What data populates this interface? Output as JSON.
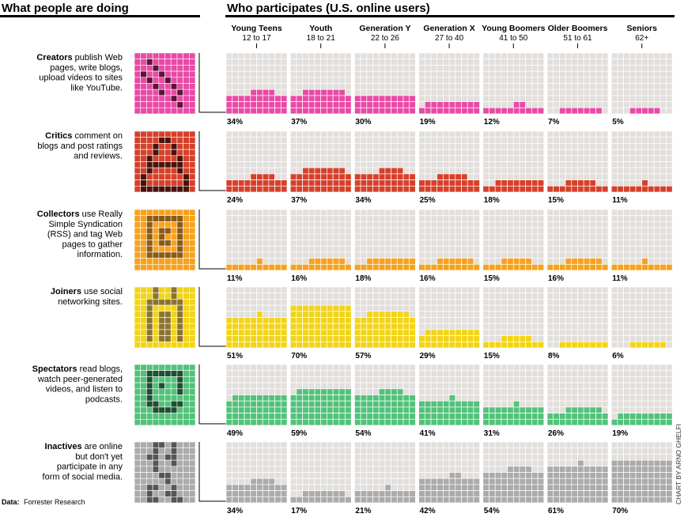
{
  "header": {
    "left_title": "What people are doing",
    "right_title": "Who participates (U.S. online users)"
  },
  "footer": {
    "source": "Forrester Research",
    "source_label": "Data:",
    "credit": "CHART BY ARNO GHELFI"
  },
  "colors": {
    "empty_cell": "#e2dfdc",
    "grid_line": "#ffffff",
    "header_rule": "#000000"
  },
  "chart_data": {
    "type": "heatmap",
    "title": "Who participates (U.S. online users)",
    "groups": [
      {
        "name": "Young Teens",
        "ages": "12 to 17"
      },
      {
        "name": "Youth",
        "ages": "18 to 21"
      },
      {
        "name": "Generation Y",
        "ages": "22 to 26"
      },
      {
        "name": "Generation X",
        "ages": "27 to 40"
      },
      {
        "name": "Young Boomers",
        "ages": "41 to 50"
      },
      {
        "name": "Older Boomers",
        "ages": "51 to 61"
      },
      {
        "name": "Seniors",
        "ages": "62+"
      }
    ],
    "series": [
      {
        "name": "Creators",
        "description": "publish Web pages, write blogs, upload videos to sites like YouTube.",
        "values": [
          34,
          37,
          30,
          19,
          12,
          7,
          5
        ],
        "labels": [
          "34%",
          "37%",
          "30%",
          "19%",
          "12%",
          "7%",
          "5%"
        ],
        "color": "#e84aa6",
        "dark": "#5c1436"
      },
      {
        "name": "Critics",
        "description": "comment on blogs and post ratings and reviews.",
        "values": [
          24,
          37,
          34,
          25,
          18,
          15,
          11
        ],
        "labels": [
          "24%",
          "37%",
          "34%",
          "25%",
          "18%",
          "15%",
          "11%"
        ],
        "color": "#d6402a",
        "dark": "#4a120a"
      },
      {
        "name": "Collectors",
        "description": "use Really Simple Syndication (RSS) and tag Web pages to gather information.",
        "values": [
          11,
          16,
          18,
          16,
          15,
          16,
          11
        ],
        "labels": [
          "11%",
          "16%",
          "18%",
          "16%",
          "15%",
          "16%",
          "11%"
        ],
        "color": "#f5a21f",
        "dark": "#8a5a18"
      },
      {
        "name": "Joiners",
        "description": "use social networking sites.",
        "values": [
          51,
          70,
          57,
          29,
          15,
          8,
          6
        ],
        "labels": [
          "51%",
          "70%",
          "57%",
          "29%",
          "15%",
          "8%",
          "6%"
        ],
        "color": "#f2d417",
        "dark": "#8a7430"
      },
      {
        "name": "Spectators",
        "description": "read blogs, watch peer-generated videos, and listen to podcasts.",
        "values": [
          49,
          59,
          54,
          41,
          31,
          26,
          19
        ],
        "labels": [
          "49%",
          "59%",
          "54%",
          "41%",
          "31%",
          "26%",
          "19%"
        ],
        "color": "#52c27a",
        "dark": "#1f4e30"
      },
      {
        "name": "Inactives",
        "description": "are online but don't yet participate in any form of social media.",
        "values": [
          34,
          17,
          21,
          42,
          54,
          61,
          70
        ],
        "labels": [
          "34%",
          "17%",
          "21%",
          "42%",
          "54%",
          "61%",
          "70%"
        ],
        "color": "#ababab",
        "dark": "#555555"
      }
    ]
  }
}
